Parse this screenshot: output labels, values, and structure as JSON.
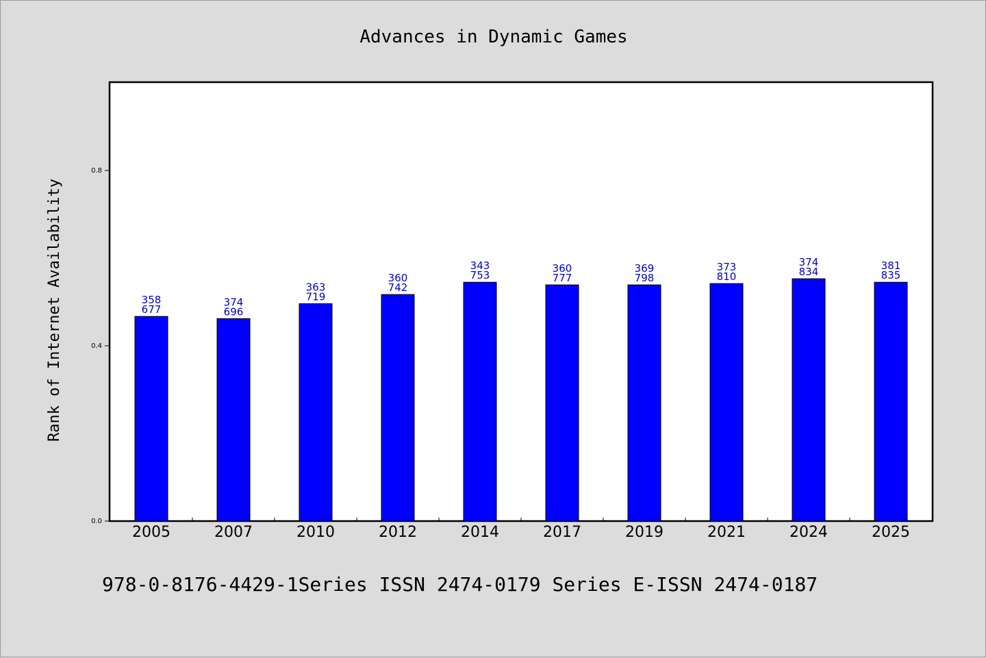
{
  "chart_data": {
    "type": "bar",
    "title": "Advances in Dynamic Games",
    "xlabel": "",
    "ylabel": "Rank of Internet Availability",
    "categories": [
      "2005",
      "2007",
      "2010",
      "2012",
      "2014",
      "2017",
      "2019",
      "2021",
      "2024",
      "2025"
    ],
    "values": [
      0.467,
      0.462,
      0.496,
      0.517,
      0.545,
      0.539,
      0.539,
      0.542,
      0.553,
      0.545
    ],
    "data_labels": [
      [
        "358",
        "677"
      ],
      [
        "374",
        "696"
      ],
      [
        "363",
        "719"
      ],
      [
        "360",
        "742"
      ],
      [
        "343",
        "753"
      ],
      [
        "360",
        "777"
      ],
      [
        "369",
        "798"
      ],
      [
        "373",
        "810"
      ],
      [
        "374",
        "834"
      ],
      [
        "381",
        "835"
      ]
    ],
    "ylim": [
      0,
      1.0
    ],
    "yticks": [
      0.0,
      0.4,
      0.8
    ],
    "ytick_labels": [
      "0.0",
      "0.4",
      "0.8"
    ],
    "grid": false,
    "legend": "none",
    "bar_color": "#0000ff",
    "label_color": "#0000cc"
  },
  "footer": {
    "text": "978-0-8176-4429-1Series ISSN 2474-0179 Series E-ISSN 2474-0187"
  }
}
